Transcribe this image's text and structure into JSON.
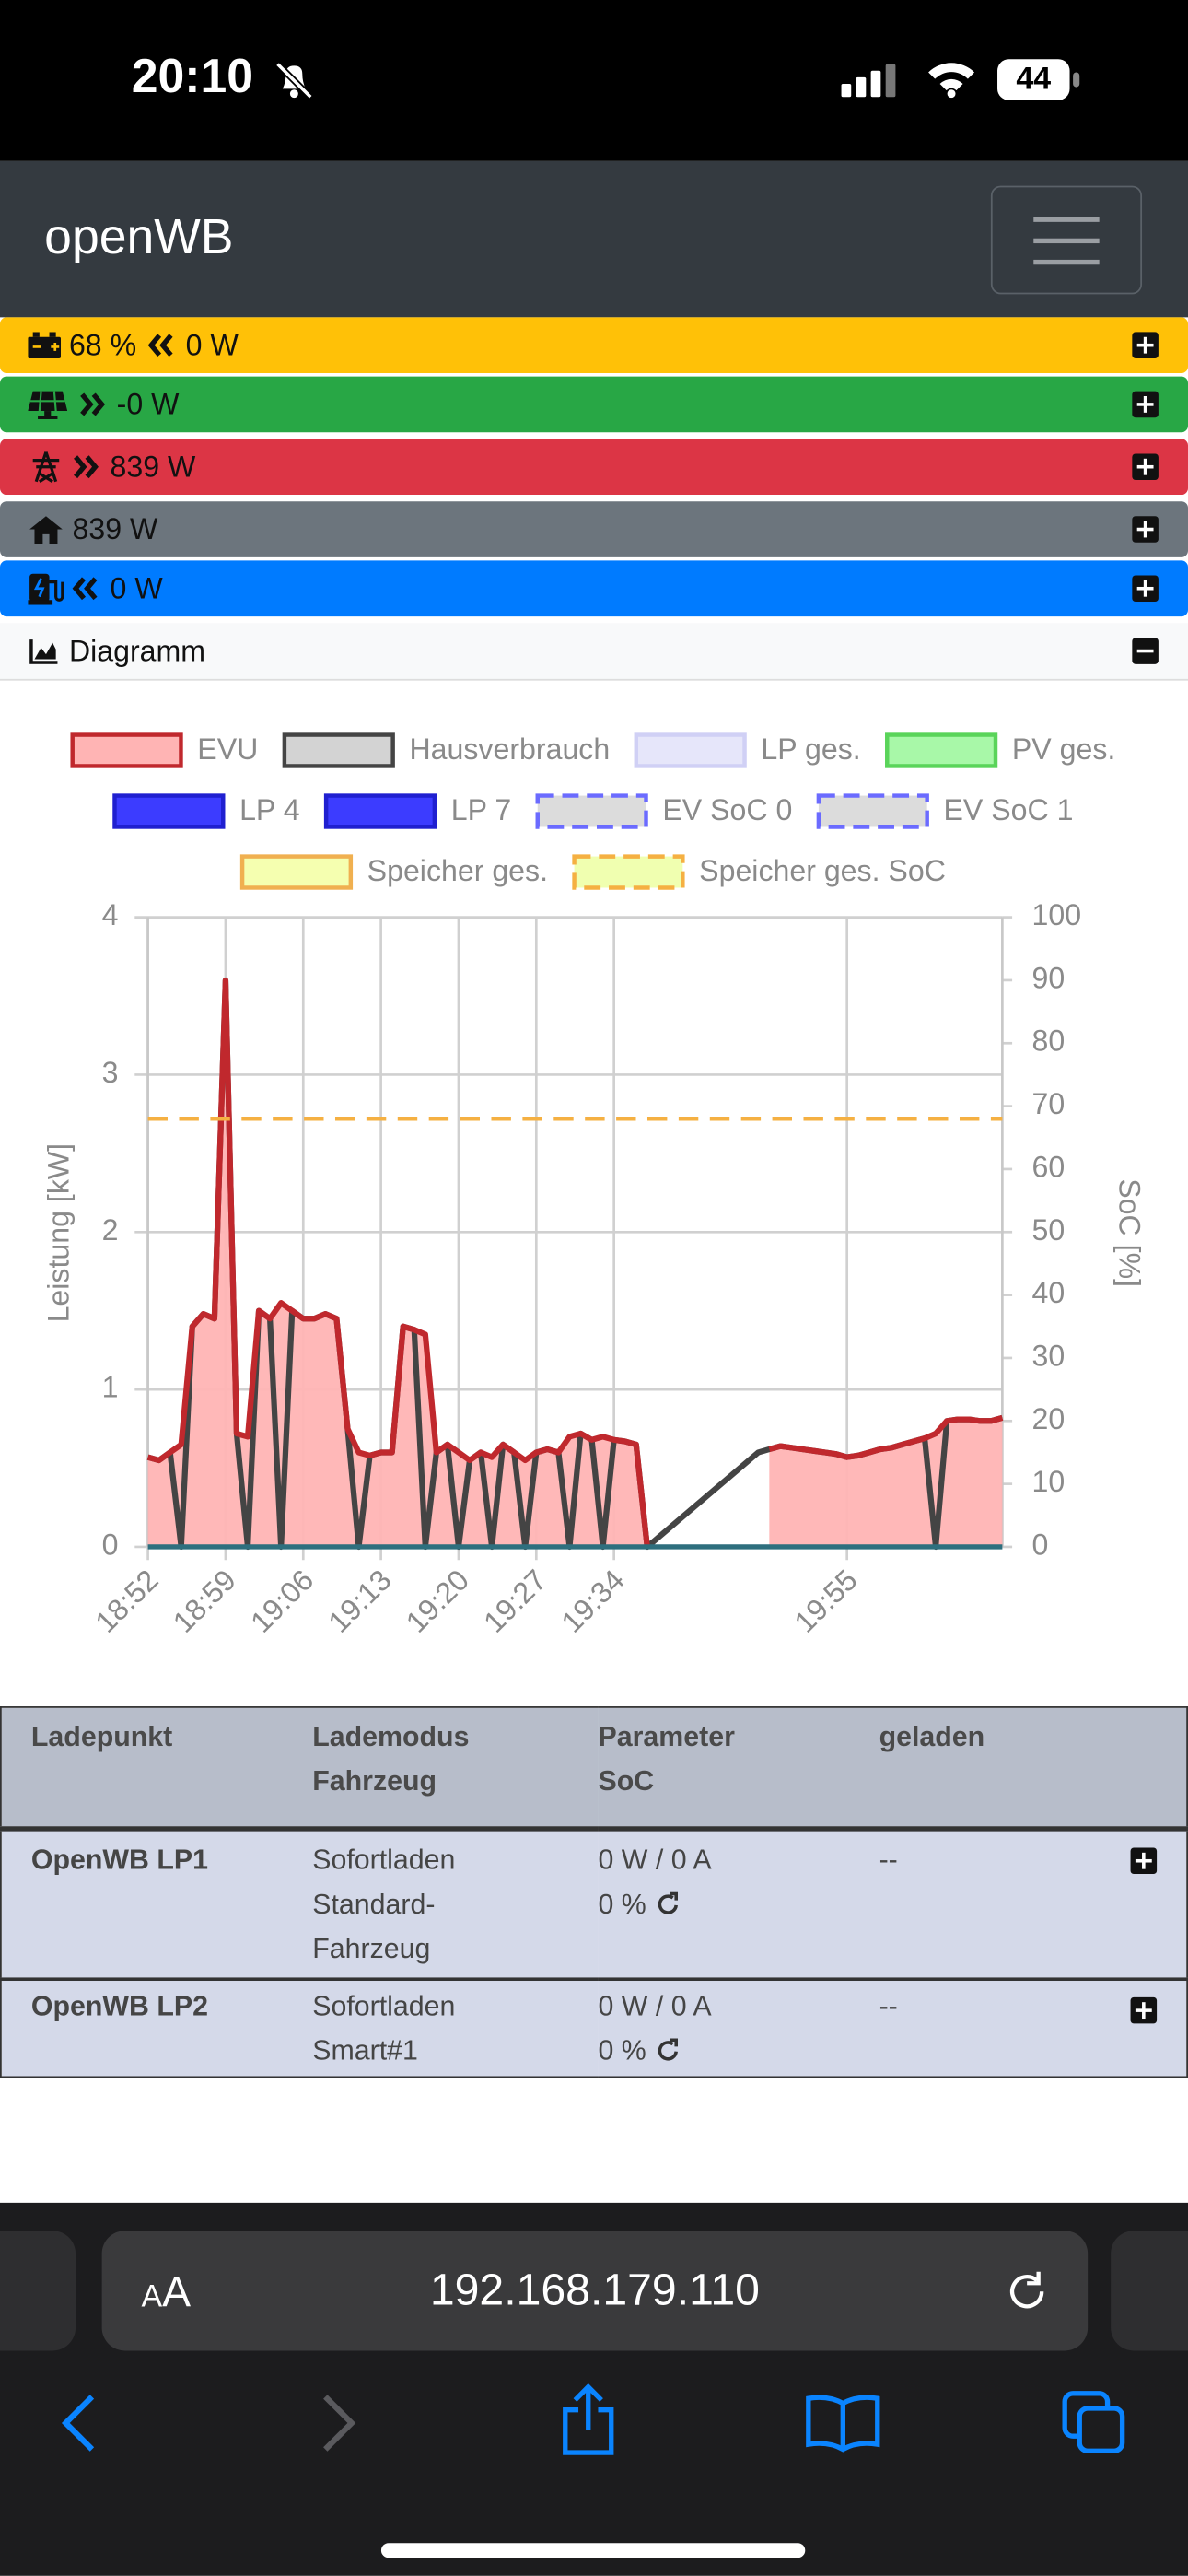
{
  "status_bar": {
    "time": "20:10",
    "battery": "44"
  },
  "navbar": {
    "brand": "openWB"
  },
  "summary": [
    {
      "soc": "68 %",
      "value": "0 W"
    },
    {
      "value": "-0 W"
    },
    {
      "value": "839 W"
    },
    {
      "value": "839 W"
    },
    {
      "value": "0 W"
    }
  ],
  "diagram_header": "Diagramm",
  "chart_data": {
    "type": "line",
    "categories": [
      "18:52",
      null,
      null,
      null,
      null,
      null,
      null,
      "18:59",
      null,
      null,
      null,
      null,
      null,
      null,
      "19:06",
      null,
      null,
      null,
      null,
      null,
      null,
      "19:13",
      null,
      null,
      null,
      null,
      null,
      null,
      "19:20",
      null,
      null,
      null,
      null,
      null,
      null,
      "19:27",
      null,
      null,
      null,
      null,
      null,
      null,
      "19:34",
      null,
      null,
      null,
      null,
      null,
      null,
      null,
      null,
      null,
      null,
      null,
      null,
      null,
      null,
      null,
      null,
      null,
      null,
      null,
      null,
      "19:55",
      null,
      null,
      null,
      null,
      null,
      null,
      null,
      null,
      null,
      null,
      null,
      null,
      null,
      null
    ],
    "y_label": "Leistung [kW]",
    "y2_label": "SoC [%]",
    "ylim": [
      0,
      4
    ],
    "yticks": [
      0,
      1,
      2,
      3,
      4
    ],
    "y2lim": [
      0,
      100
    ],
    "y2ticks": [
      0,
      10,
      20,
      30,
      40,
      50,
      60,
      70,
      80,
      90,
      100
    ],
    "grid": true,
    "series": [
      {
        "name": "EVU",
        "color": "#c0282d",
        "fill": "#ffb4b4",
        "area": true,
        "values": [
          0.57,
          0.55,
          0.6,
          0.65,
          1.4,
          1.48,
          1.45,
          3.6,
          0.72,
          0.7,
          1.5,
          1.45,
          1.55,
          1.5,
          1.45,
          1.45,
          1.48,
          1.45,
          0.75,
          0.6,
          0.58,
          0.6,
          0.6,
          1.4,
          1.38,
          1.35,
          0.6,
          0.65,
          0.6,
          0.55,
          0.6,
          0.57,
          0.65,
          0.6,
          0.55,
          0.6,
          0.62,
          0.6,
          0.7,
          0.72,
          0.68,
          0.7,
          0.68,
          0.67,
          0.65,
          0,
          null,
          null,
          null,
          null,
          null,
          null,
          null,
          null,
          null,
          null,
          0.62,
          0.64,
          0.63,
          0.62,
          0.61,
          0.6,
          0.59,
          0.57,
          0.58,
          0.6,
          0.62,
          0.63,
          0.65,
          0.67,
          0.69,
          0.72,
          0.8,
          0.81,
          0.81,
          0.8,
          0.8,
          0.82
        ]
      },
      {
        "name": "Hausverbrauch",
        "color": "#444444",
        "fill": "#d3d3d3",
        "values": [
          0.57,
          0.55,
          0.6,
          0,
          1.4,
          1.48,
          1.45,
          3.6,
          0.72,
          0,
          1.5,
          1.45,
          0,
          1.5,
          1.45,
          1.45,
          1.48,
          1.45,
          0.75,
          0,
          0.58,
          0.6,
          0.6,
          1.4,
          1.38,
          0,
          0.6,
          0.65,
          0,
          0.55,
          0.6,
          0,
          0.65,
          0.6,
          0,
          0.6,
          0.62,
          0.6,
          0,
          0.72,
          0.68,
          0,
          0.68,
          0.67,
          0.65,
          0,
          0.06,
          0.12,
          0.18,
          0.24,
          0.3,
          0.36,
          0.42,
          0.48,
          0.54,
          0.6,
          0.62,
          0.64,
          0.63,
          0.62,
          0.61,
          0.6,
          0.59,
          0.57,
          0.58,
          0.6,
          0.62,
          0.63,
          0.65,
          0.67,
          0.69,
          0,
          0.8,
          0.81,
          0.81,
          0.8,
          0.8,
          0.82
        ]
      },
      {
        "name": "LP ges.",
        "color": "#d0d0f5",
        "fill": "#e6e6fa"
      },
      {
        "name": "PV ges.",
        "color": "#5ad45a",
        "fill": "#a8f8a8"
      },
      {
        "name": "LP 4",
        "color": "#2020d0",
        "fill": "#3c3cff"
      },
      {
        "name": "LP 7",
        "color": "#2020d0",
        "fill": "#3c3cff"
      },
      {
        "name": "EV SoC 0",
        "color": "#6b6bff",
        "fill": "#dcdcdc",
        "dashed": true
      },
      {
        "name": "EV SoC 1",
        "color": "#6b6bff",
        "fill": "#dcdcdc",
        "dashed": true
      },
      {
        "name": "Speicher ges.",
        "color": "#f0b050",
        "fill": "#f5ffb0"
      },
      {
        "name": "Speicher ges. SoC",
        "color": "#f5b042",
        "fill": "#f0ffb0",
        "dashed": true,
        "axis": "y2",
        "values": [
          68,
          68,
          68,
          68,
          68,
          68,
          68,
          68,
          68,
          68,
          68,
          68,
          68,
          68,
          68,
          68,
          68,
          68,
          68,
          68,
          68,
          68,
          68,
          68,
          68,
          68,
          68,
          68,
          68,
          68,
          68,
          68,
          68,
          68,
          68,
          68,
          68,
          68,
          68,
          68,
          68,
          68,
          68,
          68,
          68,
          68,
          68,
          68,
          68,
          68,
          68,
          68,
          68,
          68,
          68,
          68,
          68,
          68,
          68,
          68,
          68,
          68,
          68,
          68,
          68,
          68,
          68,
          68,
          68,
          68,
          68,
          68,
          68,
          68,
          68,
          68,
          68,
          68
        ]
      }
    ]
  },
  "table": {
    "header": [
      [
        "Ladepunkt"
      ],
      [
        "Lademodus",
        "Fahrzeug"
      ],
      [
        "Parameter",
        "SoC"
      ],
      [
        "geladen"
      ]
    ],
    "rows": [
      [
        [
          "OpenWB LP1"
        ],
        [
          "Sofortladen",
          "Standard-Fahrzeug"
        ],
        [
          "0 W / 0 A",
          "0 %"
        ],
        [
          "--"
        ]
      ],
      [
        [
          "OpenWB LP2"
        ],
        [
          "Sofortladen",
          "Smart#1"
        ],
        [
          "0 W / 0 A",
          "0 %"
        ],
        [
          "--"
        ]
      ]
    ]
  },
  "browser": {
    "text_size": "AA",
    "url": "192.168.179.110"
  }
}
